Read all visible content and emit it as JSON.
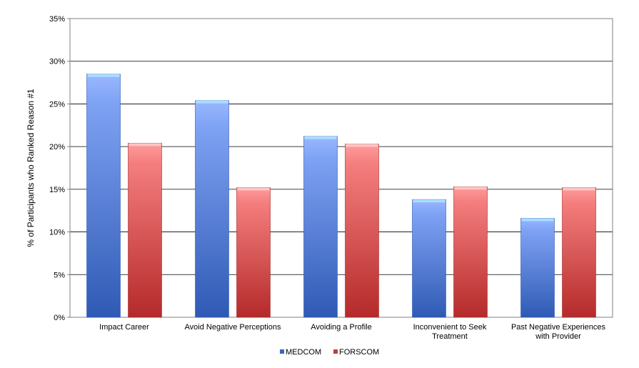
{
  "chart_data": {
    "type": "bar",
    "categories": [
      [
        "Impact Career"
      ],
      [
        "Avoid Negative Perceptions"
      ],
      [
        "Avoiding a Profile"
      ],
      [
        "Inconvenient to Seek",
        "Treatment"
      ],
      [
        "Past Negative Experiences",
        "with Provider"
      ]
    ],
    "series": [
      {
        "name": "MEDCOM",
        "values": [
          28.5,
          25.4,
          21.2,
          13.8,
          11.6
        ],
        "color": "#4a79d9"
      },
      {
        "name": "FORSCOM",
        "values": [
          20.4,
          15.2,
          20.3,
          15.3,
          15.2
        ],
        "color": "#e0474a"
      }
    ],
    "ylabel": "% of Participants who Ranked Reason #1",
    "ylim": [
      0,
      35
    ],
    "yticks": [
      "0%",
      "5%",
      "10%",
      "15%",
      "20%",
      "25%",
      "30%",
      "35%"
    ],
    "grid": true,
    "legend": "bottom"
  }
}
